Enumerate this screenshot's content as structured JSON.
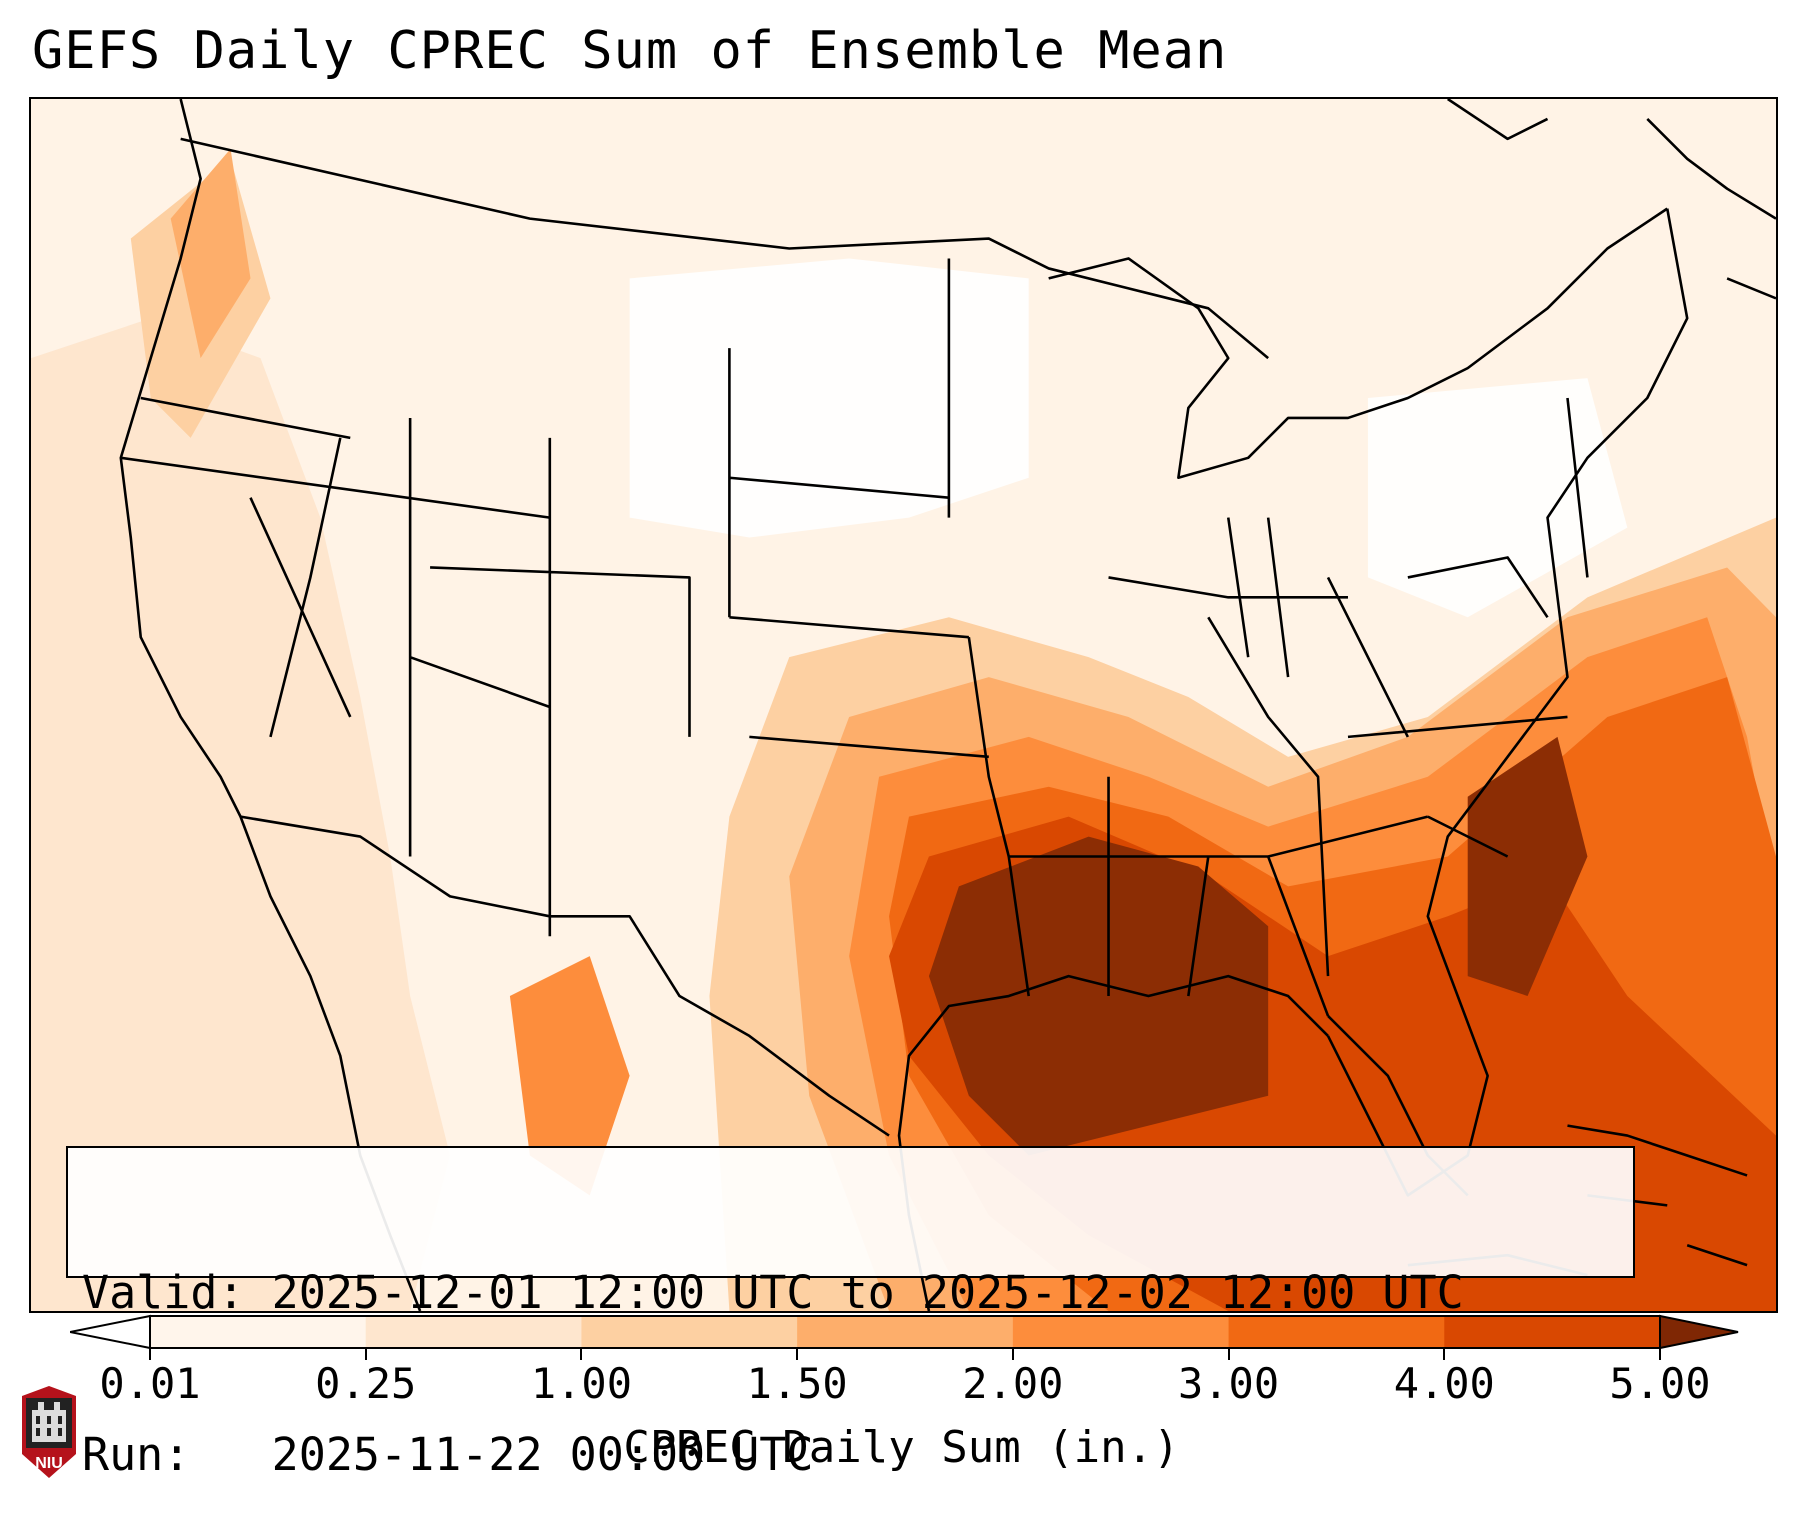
{
  "title": "GEFS Daily CPREC Sum of Ensemble Mean",
  "info": {
    "valid_line": "Valid: 2025-12-01 12:00 UTC to 2025-12-02 12:00 UTC",
    "run_line": "Run:   2025-11-22 00:00 UTC"
  },
  "colorbar": {
    "label": "CPREC Daily Sum (in.)",
    "ticks": [
      "0.01",
      "0.25",
      "1.00",
      "1.50",
      "2.00",
      "3.00",
      "4.00",
      "5.00"
    ],
    "colors": [
      "#fff5eb",
      "#fee6ce",
      "#fdd0a2",
      "#fdae6b",
      "#fd8d3c",
      "#f16913",
      "#d94801",
      "#8c2d04"
    ],
    "under_color": "#ffffff",
    "over_color": "#7f2704"
  },
  "logo": {
    "text": "NIU"
  }
}
